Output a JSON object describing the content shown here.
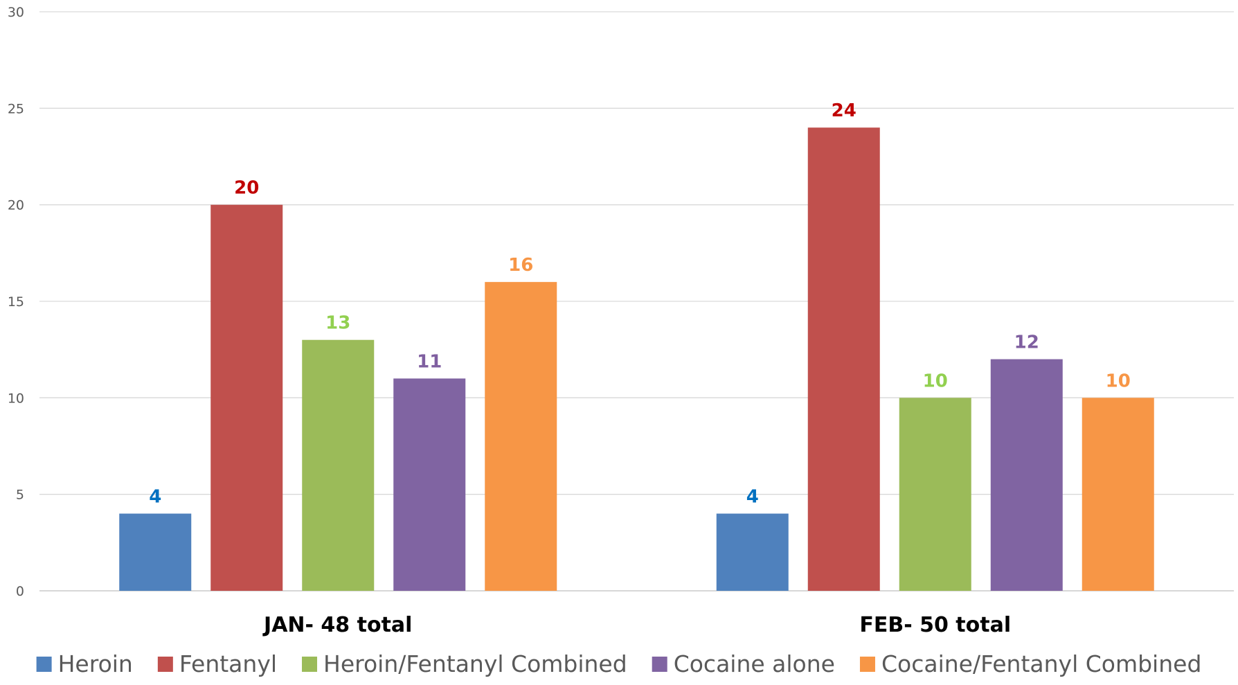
{
  "chart_data": {
    "type": "bar",
    "title": "",
    "xlabel": "",
    "ylabel": "",
    "ylim": [
      0,
      30
    ],
    "yticks": [
      0,
      5,
      10,
      15,
      20,
      25,
      30
    ],
    "grid": true,
    "legend_position": "bottom",
    "categories": [
      "JAN- 48 total",
      "FEB- 50 total"
    ],
    "series": [
      {
        "name": "Heroin",
        "color": "#4F81BD",
        "label_color": "#0070C0",
        "values": [
          4,
          4
        ]
      },
      {
        "name": "Fentanyl",
        "color": "#C0504D",
        "label_color": "#C00000",
        "values": [
          20,
          24
        ]
      },
      {
        "name": "Heroin/Fentanyl Combined",
        "color": "#9BBB59",
        "label_color": "#92D050",
        "values": [
          13,
          10
        ]
      },
      {
        "name": "Cocaine alone",
        "color": "#8064A2",
        "label_color": "#7F5FA0",
        "values": [
          11,
          12
        ]
      },
      {
        "name": "Cocaine/Fentanyl Combined",
        "color": "#F79646",
        "label_color": "#F79646",
        "values": [
          16,
          10
        ]
      }
    ]
  }
}
